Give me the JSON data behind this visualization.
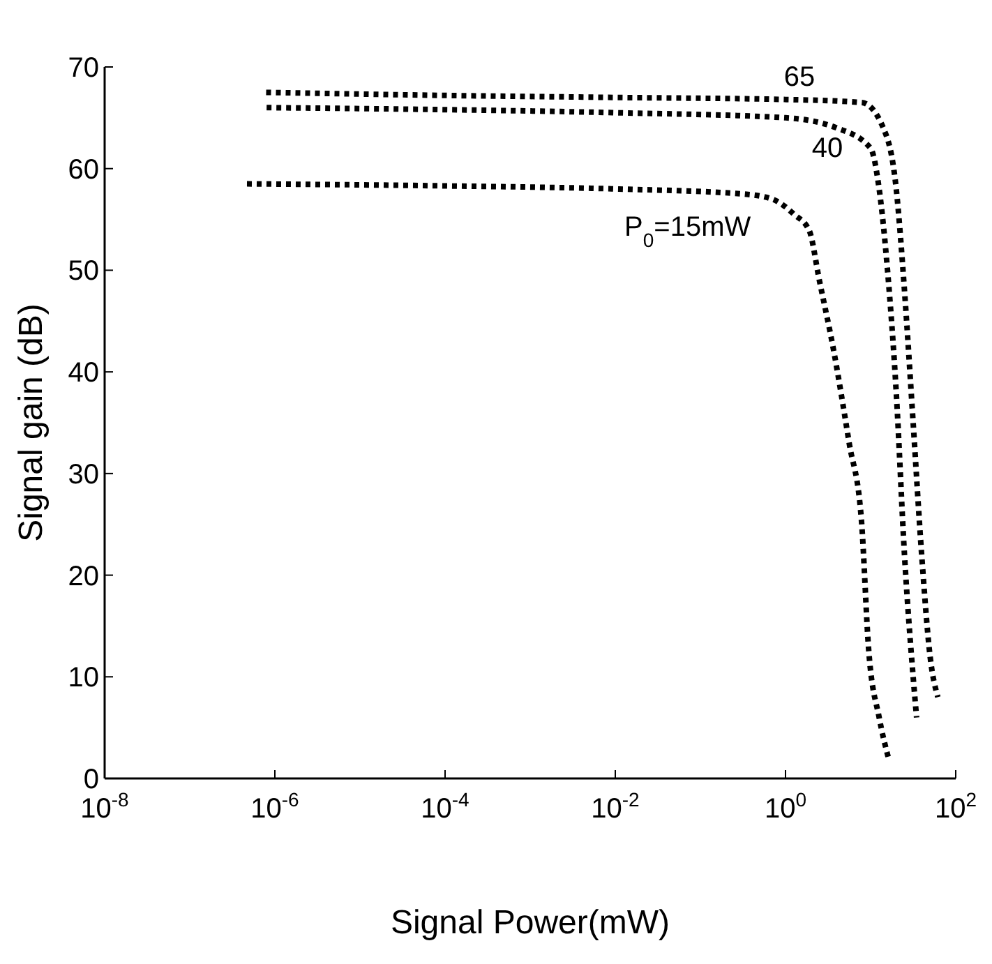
{
  "chart_data": {
    "type": "line",
    "xlabel": "Signal Power(mW)",
    "ylabel": "Signal gain (dB)",
    "log": "x",
    "xlim": [
      1e-08,
      100
    ],
    "ylim": [
      0,
      70
    ],
    "xticks": [
      {
        "value": 1e-08,
        "label": "10$^{-8}$"
      },
      {
        "value": 1e-06,
        "label": "10$^{-6}$"
      },
      {
        "value": 0.0001,
        "label": "10$^{-4}$"
      },
      {
        "value": 0.01,
        "label": "10$^{-2}$"
      },
      {
        "value": 1,
        "label": "10$^{0}$"
      },
      {
        "value": 100,
        "label": "10$^{2}$"
      }
    ],
    "yticks": [
      0,
      10,
      20,
      30,
      40,
      50,
      60,
      70
    ],
    "grid": false,
    "marker": "none",
    "line_style": "dotted",
    "legend": false,
    "series": [
      {
        "name": "P$_{0}$=15mW",
        "color": "#000000",
        "x": [
          4.7e-07,
          0.0001,
          0.01,
          0.32,
          0.7,
          1.26,
          1.9,
          2.5,
          3.7,
          5.6,
          7.8,
          9.5,
          12.6,
          16.2
        ],
        "values": [
          58.5,
          58.3,
          58,
          57.5,
          57,
          55.5,
          53.9,
          49,
          42,
          33,
          25.4,
          12.6,
          6,
          2
        ]
      },
      {
        "name": "40",
        "color": "#000000",
        "x": [
          8e-07,
          0.0001,
          0.01,
          1,
          4,
          10,
          12.6,
          15.8,
          20,
          25,
          31.6,
          34.7
        ],
        "values": [
          66,
          65.8,
          65.5,
          65,
          64,
          62,
          58,
          50,
          38,
          22,
          10,
          6
        ]
      },
      {
        "name": "65",
        "color": "#000000",
        "x": [
          7.9e-07,
          0.0001,
          0.01,
          1,
          7.9,
          14.1,
          20,
          25,
          31.6,
          39.8,
          50,
          61.7
        ],
        "values": [
          67.5,
          67.2,
          67,
          66.8,
          66.5,
          64,
          58,
          48,
          35,
          22,
          12,
          8
        ]
      }
    ]
  }
}
